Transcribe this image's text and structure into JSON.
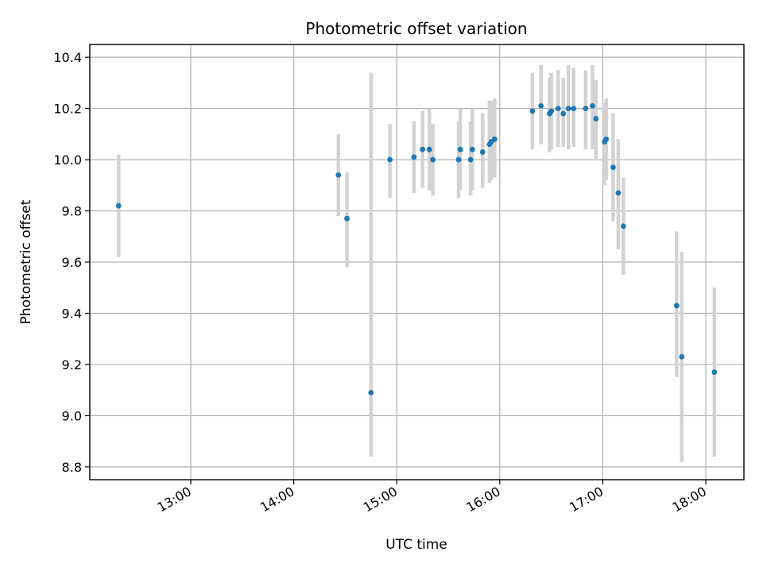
{
  "chart_data": {
    "type": "scatter",
    "title": "Photometric offset variation",
    "xlabel": "UTC time",
    "ylabel": "Photometric offset",
    "xlim_hours": [
      12.02,
      18.37
    ],
    "ylim": [
      8.75,
      10.45
    ],
    "x_ticks": [
      {
        "hour": 13,
        "label": "13:00"
      },
      {
        "hour": 14,
        "label": "14:00"
      },
      {
        "hour": 15,
        "label": "15:00"
      },
      {
        "hour": 16,
        "label": "16:00"
      },
      {
        "hour": 17,
        "label": "17:00"
      },
      {
        "hour": 18,
        "label": "18:00"
      }
    ],
    "y_ticks": [
      {
        "value": 8.8,
        "label": "8.8"
      },
      {
        "value": 9.0,
        "label": "9.0"
      },
      {
        "value": 9.2,
        "label": "9.2"
      },
      {
        "value": 9.4,
        "label": "9.4"
      },
      {
        "value": 9.6,
        "label": "9.6"
      },
      {
        "value": 9.8,
        "label": "9.8"
      },
      {
        "value": 10.0,
        "label": "10.0"
      },
      {
        "value": 10.2,
        "label": "10.2"
      },
      {
        "value": 10.4,
        "label": "10.4"
      }
    ],
    "grid": true,
    "marker_color": "#1f77b4",
    "errorbar_color": "#d3d3d3",
    "points": [
      {
        "time": "12:18",
        "y": 9.82,
        "ylow": 9.62,
        "yhigh": 10.02
      },
      {
        "time": "14:26",
        "y": 9.94,
        "ylow": 9.78,
        "yhigh": 10.1
      },
      {
        "time": "14:31",
        "y": 9.77,
        "ylow": 9.58,
        "yhigh": 9.95
      },
      {
        "time": "14:45",
        "y": 9.09,
        "ylow": 8.84,
        "yhigh": 10.34
      },
      {
        "time": "14:56",
        "y": 10.0,
        "ylow": 9.85,
        "yhigh": 10.14
      },
      {
        "time": "15:10",
        "y": 10.01,
        "ylow": 9.87,
        "yhigh": 10.15
      },
      {
        "time": "15:15",
        "y": 10.04,
        "ylow": 9.89,
        "yhigh": 10.19
      },
      {
        "time": "15:19",
        "y": 10.04,
        "ylow": 9.88,
        "yhigh": 10.2
      },
      {
        "time": "15:21",
        "y": 10.0,
        "ylow": 9.86,
        "yhigh": 10.14
      },
      {
        "time": "15:36",
        "y": 10.0,
        "ylow": 9.85,
        "yhigh": 10.15
      },
      {
        "time": "15:37",
        "y": 10.04,
        "ylow": 9.88,
        "yhigh": 10.2
      },
      {
        "time": "15:43",
        "y": 10.0,
        "ylow": 9.86,
        "yhigh": 10.15
      },
      {
        "time": "15:44",
        "y": 10.04,
        "ylow": 9.88,
        "yhigh": 10.2
      },
      {
        "time": "15:50",
        "y": 10.03,
        "ylow": 9.89,
        "yhigh": 10.18
      },
      {
        "time": "15:54",
        "y": 10.06,
        "ylow": 9.91,
        "yhigh": 10.23
      },
      {
        "time": "15:55",
        "y": 10.07,
        "ylow": 9.92,
        "yhigh": 10.23
      },
      {
        "time": "15:57",
        "y": 10.08,
        "ylow": 9.93,
        "yhigh": 10.24
      },
      {
        "time": "16:19",
        "y": 10.19,
        "ylow": 10.04,
        "yhigh": 10.34
      },
      {
        "time": "16:24",
        "y": 10.21,
        "ylow": 10.06,
        "yhigh": 10.37
      },
      {
        "time": "16:29",
        "y": 10.18,
        "ylow": 10.03,
        "yhigh": 10.32
      },
      {
        "time": "16:30",
        "y": 10.19,
        "ylow": 10.04,
        "yhigh": 10.34
      },
      {
        "time": "16:34",
        "y": 10.2,
        "ylow": 10.05,
        "yhigh": 10.35
      },
      {
        "time": "16:37",
        "y": 10.18,
        "ylow": 10.05,
        "yhigh": 10.32
      },
      {
        "time": "16:40",
        "y": 10.2,
        "ylow": 10.04,
        "yhigh": 10.37
      },
      {
        "time": "16:43",
        "y": 10.2,
        "ylow": 10.05,
        "yhigh": 10.36
      },
      {
        "time": "16:50",
        "y": 10.2,
        "ylow": 10.04,
        "yhigh": 10.35
      },
      {
        "time": "16:54",
        "y": 10.21,
        "ylow": 10.04,
        "yhigh": 10.37
      },
      {
        "time": "16:56",
        "y": 10.16,
        "ylow": 10.0,
        "yhigh": 10.31
      },
      {
        "time": "17:01",
        "y": 10.07,
        "ylow": 9.9,
        "yhigh": 10.22
      },
      {
        "time": "17:02",
        "y": 10.08,
        "ylow": 9.92,
        "yhigh": 10.24
      },
      {
        "time": "17:06",
        "y": 9.97,
        "ylow": 9.76,
        "yhigh": 10.18
      },
      {
        "time": "17:09",
        "y": 9.87,
        "ylow": 9.65,
        "yhigh": 10.08
      },
      {
        "time": "17:12",
        "y": 9.74,
        "ylow": 9.55,
        "yhigh": 9.93
      },
      {
        "time": "17:43",
        "y": 9.43,
        "ylow": 9.15,
        "yhigh": 9.72
      },
      {
        "time": "17:46",
        "y": 9.23,
        "ylow": 8.82,
        "yhigh": 9.64
      },
      {
        "time": "18:05",
        "y": 9.17,
        "ylow": 8.84,
        "yhigh": 9.5
      }
    ]
  }
}
